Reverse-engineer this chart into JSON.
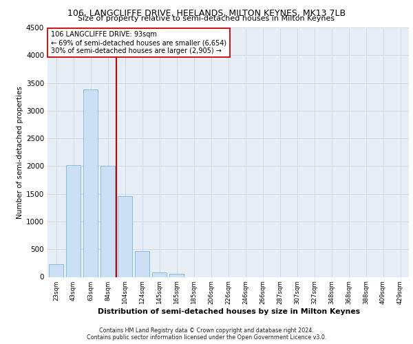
{
  "title_line1": "106, LANGCLIFFE DRIVE, HEELANDS, MILTON KEYNES, MK13 7LB",
  "title_line2": "Size of property relative to semi-detached houses in Milton Keynes",
  "xlabel": "Distribution of semi-detached houses by size in Milton Keynes",
  "ylabel": "Number of semi-detached properties",
  "footer_line1": "Contains HM Land Registry data © Crown copyright and database right 2024.",
  "footer_line2": "Contains public sector information licensed under the Open Government Licence v3.0.",
  "annotation_line1": "106 LANGCLIFFE DRIVE: 93sqm",
  "annotation_line2": "← 69% of semi-detached houses are smaller (6,654)",
  "annotation_line3": "30% of semi-detached houses are larger (2,905) →",
  "bar_color": "#cce0f5",
  "bar_edge_color": "#7ab8d9",
  "vline_color": "#cc0000",
  "categories": [
    "23sqm",
    "43sqm",
    "63sqm",
    "84sqm",
    "104sqm",
    "124sqm",
    "145sqm",
    "165sqm",
    "185sqm",
    "206sqm",
    "226sqm",
    "246sqm",
    "266sqm",
    "287sqm",
    "307sqm",
    "327sqm",
    "348sqm",
    "368sqm",
    "388sqm",
    "409sqm",
    "429sqm"
  ],
  "values": [
    230,
    2020,
    3380,
    2010,
    1460,
    460,
    80,
    50,
    0,
    0,
    0,
    0,
    0,
    0,
    0,
    0,
    0,
    0,
    0,
    0,
    0
  ],
  "ylim": [
    0,
    4500
  ],
  "yticks": [
    0,
    500,
    1000,
    1500,
    2000,
    2500,
    3000,
    3500,
    4000,
    4500
  ],
  "vline_x_index": 4,
  "grid_color": "#ced8e8",
  "bg_color": "#e8eef6"
}
